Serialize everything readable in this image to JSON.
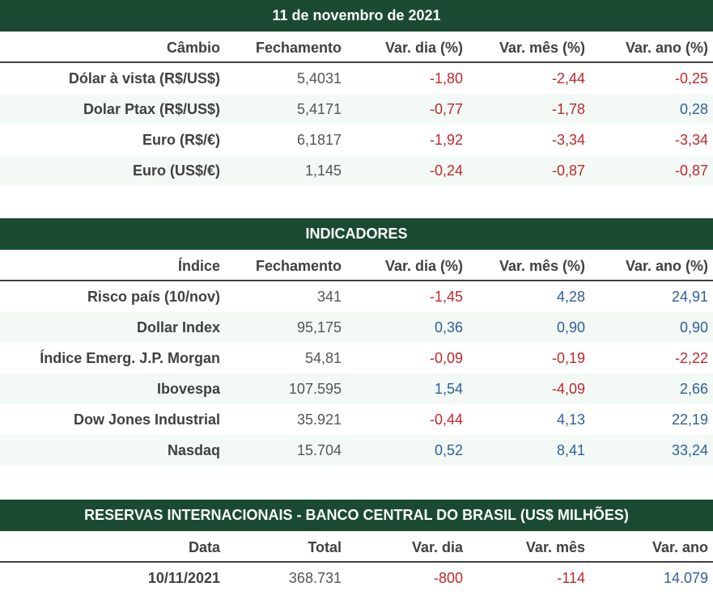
{
  "colors": {
    "header_bg": "#1b4a33",
    "negative": "#c0282d",
    "positive": "#2f5f9a"
  },
  "cambio": {
    "title": "11 de novembro de 2021",
    "headers": [
      "Câmbio",
      "Fechamento",
      "Var. dia (%)",
      "Var. mês (%)",
      "Var. ano (%)"
    ],
    "rows": [
      {
        "name": "Dólar à vista (R$/US$)",
        "close": "5,4031",
        "day": "-1,80",
        "month": "-2,44",
        "year": "-0,25"
      },
      {
        "name": "Dolar Ptax (R$/US$)",
        "close": "5,4171",
        "day": "-0,77",
        "month": "-1,78",
        "year": "0,28"
      },
      {
        "name": "Euro (R$/€)",
        "close": "6,1817",
        "day": "-1,92",
        "month": "-3,34",
        "year": "-3,34"
      },
      {
        "name": "Euro (US$/€)",
        "close": "1,145",
        "day": "-0,24",
        "month": "-0,87",
        "year": "-0,87"
      }
    ]
  },
  "indicadores": {
    "title": "INDICADORES",
    "headers": [
      "Índice",
      "Fechamento",
      "Var. dia (%)",
      "Var. mês (%)",
      "Var. ano (%)"
    ],
    "rows": [
      {
        "name": "Risco país (10/nov)",
        "close": "341",
        "day": "-1,45",
        "month": "4,28",
        "year": "24,91"
      },
      {
        "name": "Dollar Index",
        "close": "95,175",
        "day": "0,36",
        "month": "0,90",
        "year": "0,90"
      },
      {
        "name": "Índice Emerg. J.P. Morgan",
        "close": "54,81",
        "day": "-0,09",
        "month": "-0,19",
        "year": "-2,22"
      },
      {
        "name": "Ibovespa",
        "close": "107.595",
        "day": "1,54",
        "month": "-4,09",
        "year": "2,66"
      },
      {
        "name": "Dow Jones Industrial",
        "close": "35.921",
        "day": "-0,44",
        "month": "4,13",
        "year": "22,19"
      },
      {
        "name": "Nasdaq",
        "close": "15.704",
        "day": "0,52",
        "month": "8,41",
        "year": "33,24"
      }
    ]
  },
  "reservas": {
    "title": "RESERVAS INTERNACIONAIS - BANCO CENTRAL DO BRASIL (US$ MILHÕES)",
    "headers": [
      "Data",
      "Total",
      "Var. dia",
      "Var. mês",
      "Var. ano"
    ],
    "rows": [
      {
        "name": "10/11/2021",
        "close": "368.731",
        "day": "-800",
        "month": "-114",
        "year": "14.079"
      }
    ]
  }
}
